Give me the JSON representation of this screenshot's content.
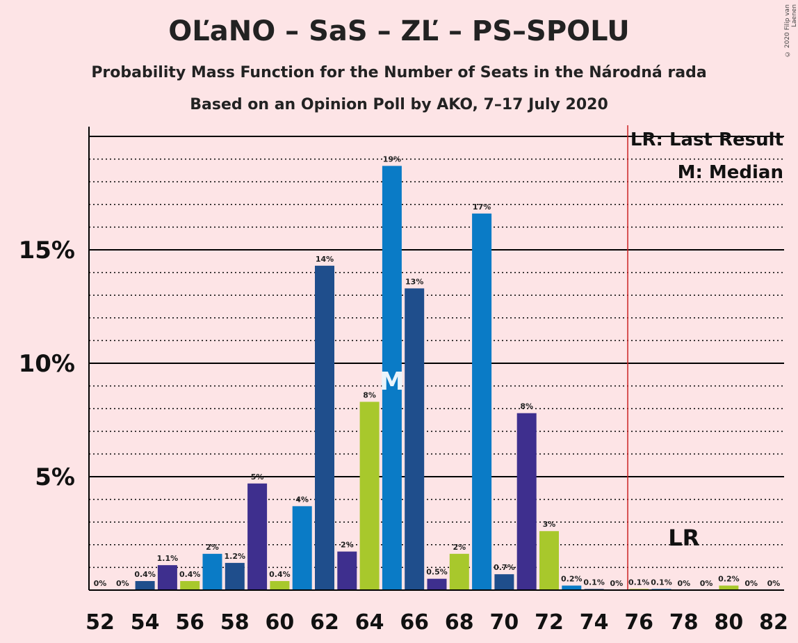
{
  "title": "OĽaNO – SaS – ZĽ – PS–SPOLU",
  "subtitle": "Probability Mass Function for the Number of Seats in the Národná rada",
  "subtitle2": "Based on an Opinion Poll by AKO, 7–17 July 2020",
  "copyright": "© 2020 Filip van Laenen",
  "colors": {
    "background": "#fde4e6",
    "olano": "#1f4e8c",
    "sas": "#0a7bc6",
    "zl": "#a8c82c",
    "ps_spolu": "#3e2f8e",
    "majority_line": "#cc2222"
  },
  "chart_data": {
    "type": "bar",
    "x": [
      52,
      53,
      54,
      55,
      56,
      57,
      58,
      59,
      60,
      61,
      62,
      63,
      64,
      65,
      66,
      67,
      68,
      69,
      70,
      71,
      72,
      73,
      74,
      75,
      76,
      77,
      78,
      79,
      80,
      81,
      82
    ],
    "values": [
      0,
      0,
      0.4,
      1.1,
      0.4,
      1.6,
      1.2,
      4.7,
      0.4,
      3.7,
      14.3,
      1.7,
      8.3,
      18.7,
      13.3,
      0.5,
      1.6,
      16.6,
      0.7,
      7.8,
      2.6,
      0.2,
      0.05,
      0,
      0.05,
      0.05,
      0,
      0,
      0.2,
      0,
      0
    ],
    "bar_labels": [
      "0%",
      "0%",
      "0.4%",
      "1.1%",
      "0.4%",
      "2%",
      "1.2%",
      "5%",
      "0.4%",
      "4%",
      "14%",
      "2%",
      "8%",
      "19%",
      "13%",
      "0.5%",
      "2%",
      "17%",
      "0.7%",
      "8%",
      "3%",
      "0.2%",
      "0.1%",
      "0%",
      "0.1%",
      "0.1%",
      "0%",
      "0%",
      "0.2%",
      "0%",
      "0%"
    ],
    "bar_colors": [
      "#3e2f8e",
      "#a8c82c",
      "#1f4e8c",
      "#3e2f8e",
      "#a8c82c",
      "#0a7bc6",
      "#1f4e8c",
      "#3e2f8e",
      "#a8c82c",
      "#0a7bc6",
      "#1f4e8c",
      "#3e2f8e",
      "#a8c82c",
      "#0a7bc6",
      "#1f4e8c",
      "#3e2f8e",
      "#a8c82c",
      "#0a7bc6",
      "#1f4e8c",
      "#3e2f8e",
      "#a8c82c",
      "#0a7bc6",
      "#1f4e8c",
      "#3e2f8e",
      "#a8c82c",
      "#0a7bc6",
      "#1f4e8c",
      "#3e2f8e",
      "#a8c82c",
      "#0a7bc6",
      "#1f4e8c"
    ],
    "x_tick_labels": [
      "52",
      "54",
      "56",
      "58",
      "60",
      "62",
      "64",
      "66",
      "68",
      "70",
      "72",
      "74",
      "76",
      "78",
      "80",
      "82"
    ],
    "y_tick_labels": [
      "5%",
      "10%",
      "15%"
    ],
    "y_tick_values": [
      5,
      10,
      15
    ],
    "ylim": [
      0,
      20.5
    ],
    "grid": "dotted every 1%, solid every 5%",
    "median_seat": 65,
    "median_marker": "M",
    "last_result_seat": 78,
    "last_result_marker": "LR",
    "majority_line_at": 75.5,
    "legend": {
      "position": "top-right",
      "items": [
        "LR: Last Result",
        "M: Median"
      ]
    }
  }
}
